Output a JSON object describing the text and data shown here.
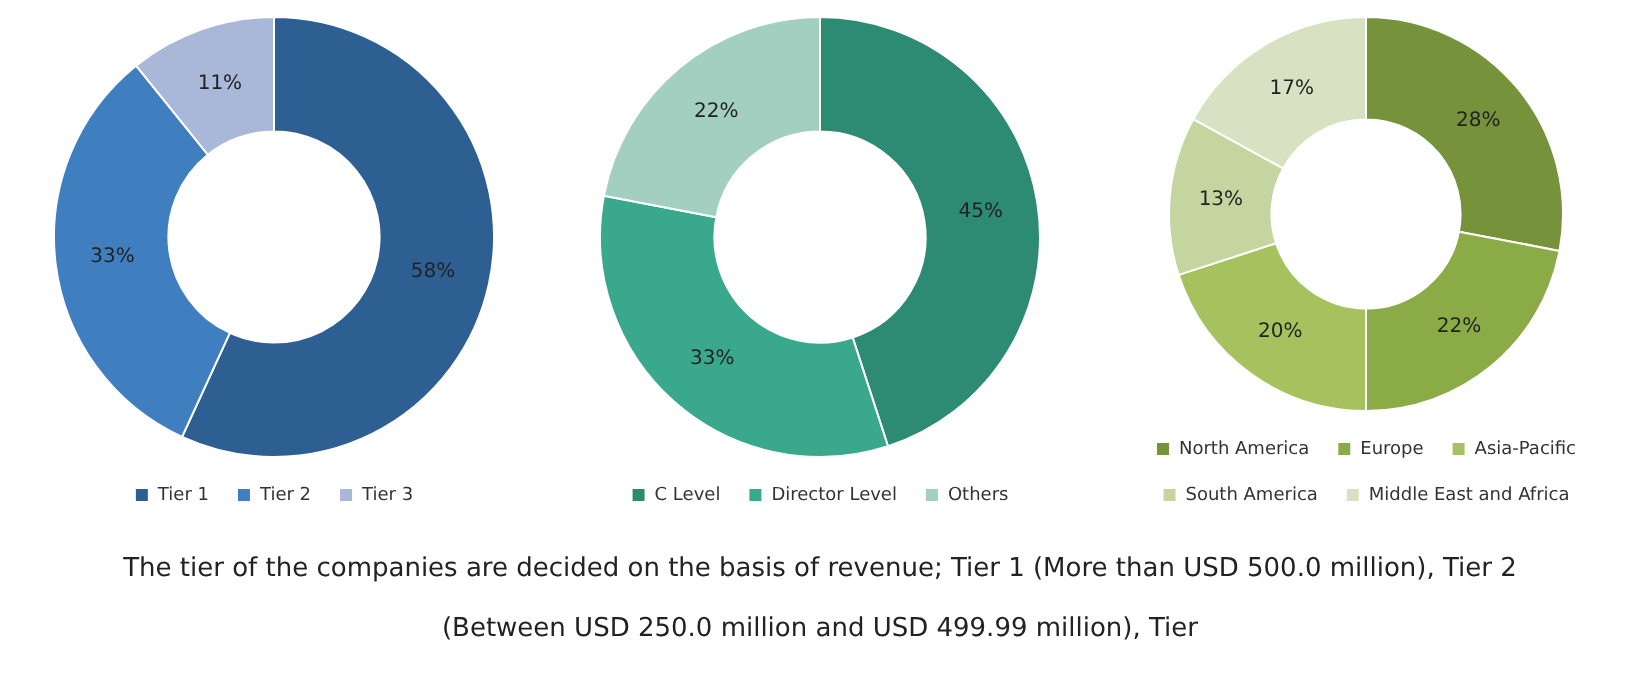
{
  "chart_data": [
    {
      "type": "donut",
      "categories": [
        "Tier 1",
        "Tier 2",
        "Tier 3"
      ],
      "values": [
        58,
        33,
        11
      ],
      "value_labels": [
        "58%",
        "33%",
        "11%"
      ],
      "colors": [
        "#2e5f93",
        "#3f7fc0",
        "#a9b8d8"
      ],
      "legend": "bottom",
      "annotations": [
        "The tier of the companies are decided on the basis of revenue; Tier 1 (More than USD 500.0 million), Tier 2 (Between USD 250.0 million and USD 499.99 million), Tier"
      ]
    },
    {
      "type": "donut",
      "categories": [
        "C Level",
        "Director Level",
        "Others"
      ],
      "values": [
        45,
        33,
        22
      ],
      "value_labels": [
        "45%",
        "33%",
        "22%"
      ],
      "colors": [
        "#2e8b73",
        "#3aa88c",
        "#a3cfc1"
      ],
      "legend": "bottom"
    },
    {
      "type": "donut",
      "categories": [
        "North America",
        "Europe",
        "Asia-Pacific",
        "South America",
        "Middle East and Africa"
      ],
      "values": [
        28,
        22,
        20,
        13,
        17
      ],
      "value_labels": [
        "28%",
        "22%",
        "20%",
        "13%",
        "17%"
      ],
      "colors": [
        "#76933c",
        "#8aab45",
        "#a6c25e",
        "#c4d5a0",
        "#d8e2c2"
      ],
      "legend": "bottom"
    }
  ]
}
